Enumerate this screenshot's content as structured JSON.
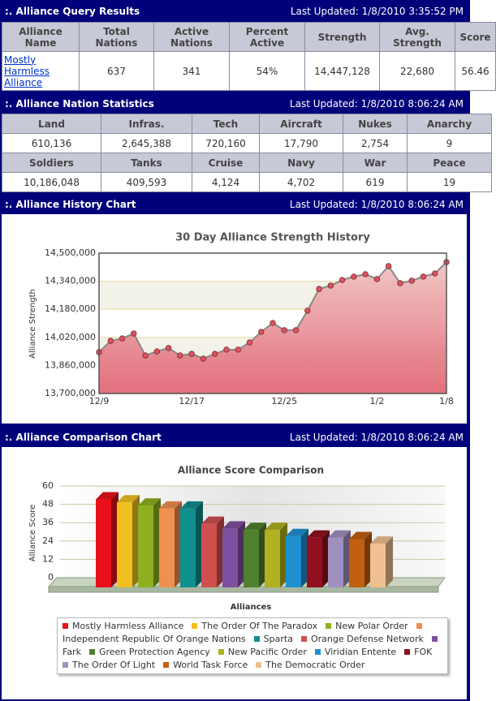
{
  "sections": [
    {
      "title": ":. Alliance Query Results",
      "updated": "Last Updated: 1/8/2010 3:35:52 PM"
    },
    {
      "title": ":. Alliance Nation Statistics",
      "updated": "Last Updated: 1/8/2010 8:06:24 AM"
    },
    {
      "title": ":. Alliance History Chart",
      "updated": "Last Updated: 1/8/2010 8:06:24 AM"
    },
    {
      "title": ":. Alliance Comparison Chart",
      "updated": "Last Updated: 1/8/2010 8:06:24 AM"
    }
  ],
  "query_table": {
    "headers": [
      "Alliance Name",
      "Total Nations",
      "Active Nations",
      "Percent Active",
      "Strength",
      "Avg. Strength",
      "Score"
    ],
    "rows": [
      [
        "Mostly Harmless Alliance",
        "637",
        "341",
        "54%",
        "14,447,128",
        "22,680",
        "56.46"
      ]
    ]
  },
  "stats_table": {
    "rows": [
      [
        "Land",
        "Infras.",
        "Tech",
        "Aircraft",
        "Nukes",
        "Anarchy"
      ],
      [
        "610,136",
        "2,645,388",
        "720,160",
        "17,790",
        "2,754",
        "9"
      ],
      [
        "Soldiers",
        "Tanks",
        "Cruise",
        "Navy",
        "War",
        "Peace"
      ],
      [
        "10,186,048",
        "409,593",
        "4,124",
        "4,702",
        "619",
        "19"
      ]
    ]
  },
  "chart_data": [
    {
      "type": "line",
      "title": "30 Day Alliance Strength History",
      "y_label": "Alliance Strength",
      "categories": [
        "12/9",
        null,
        null,
        null,
        null,
        null,
        null,
        null,
        "12/17",
        null,
        null,
        null,
        null,
        null,
        null,
        null,
        "12/25",
        null,
        null,
        null,
        null,
        null,
        null,
        null,
        "1/2",
        null,
        null,
        null,
        null,
        null,
        "1/8"
      ],
      "values": [
        13936000,
        14000000,
        14014000,
        14042000,
        13917000,
        13940000,
        13959000,
        13917000,
        13926000,
        13899000,
        13926000,
        13950000,
        13950000,
        13991000,
        14051000,
        14102000,
        14061000,
        14061000,
        14172000,
        14296000,
        14315000,
        14347000,
        14366000,
        14380000,
        14352000,
        14426000,
        14329000,
        14343000,
        14366000,
        14384000,
        14449000
      ],
      "color": "#888888",
      "marker_color": "#e05060",
      "ylim": [
        13700000,
        14500000
      ],
      "yticks": [
        {
          "value": 13700000,
          "label": "13,700,000"
        },
        {
          "value": 13860000,
          "label": "13,860,000"
        },
        {
          "value": 14020000,
          "label": "14,020,000"
        },
        {
          "value": 14180000,
          "label": "14,180,000"
        },
        {
          "value": 14340000,
          "label": "14,340,000"
        },
        {
          "value": 14500000,
          "label": "14,500,000"
        }
      ],
      "grid": true
    },
    {
      "type": "bar",
      "title": "Alliance Score Comparison",
      "y_label": "Alliance Score",
      "x_label": "Alliances",
      "categories": [
        "Mostly Harmless Alliance",
        "The Order Of The Paradox",
        "New Polar Order",
        "Independent Republic Of Orange Nations",
        "Sparta",
        "Orange Defense Network",
        "Fark",
        "Green Protection Agency",
        "New Pacific Order",
        "Viridian Entente",
        "FOK",
        "The Order Of Light",
        "World Task Force",
        "The Democratic Order"
      ],
      "values": [
        56,
        54,
        52,
        50,
        50,
        40,
        37,
        36,
        36,
        32,
        31,
        31,
        30,
        27
      ],
      "colors": [
        "#e8101a",
        "#f0c020",
        "#8db020",
        "#f09050",
        "#108f8f",
        "#d05050",
        "#8050a0",
        "#508030",
        "#b0b020",
        "#2090d0",
        "#901020",
        "#a090c0",
        "#c06010",
        "#f0c090"
      ],
      "ylim": [
        0,
        60
      ],
      "yticks": [
        0,
        12,
        24,
        36,
        48,
        60
      ],
      "grid": true
    }
  ]
}
